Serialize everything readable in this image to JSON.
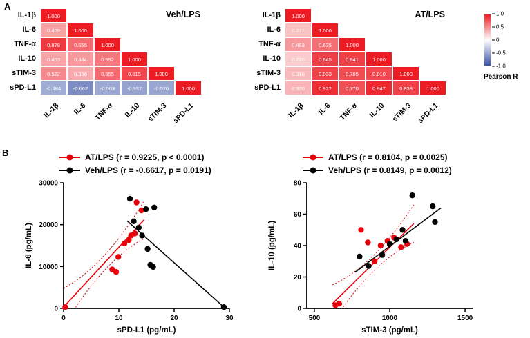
{
  "figure": {
    "panel_a_label": "A",
    "panel_b_label": "B"
  },
  "colorbar": {
    "label": "Pearson R",
    "ticks": [
      "1.0",
      "0.5",
      "0",
      "-0.5",
      "-1.0"
    ],
    "top_color": "#ec1c24",
    "mid_color": "#ffffff",
    "bottom_color": "#3a53a4"
  },
  "chart_data": [
    {
      "id": "heatmap_veh_lps",
      "type": "heatmap",
      "title": "Veh/LPS",
      "labels": [
        "IL-1β",
        "IL-6",
        "TNF-α",
        "IL-10",
        "sTIM-3",
        "sPD-L1"
      ],
      "matrix": [
        [
          1.0
        ],
        [
          0.409,
          1.0
        ],
        [
          0.878,
          0.655,
          1.0
        ],
        [
          0.403,
          0.444,
          0.592,
          1.0
        ],
        [
          0.522,
          0.366,
          0.655,
          0.815,
          1.0
        ],
        [
          -0.484,
          -0.662,
          -0.503,
          -0.537,
          -0.52,
          1.0
        ]
      ],
      "vmin": -1.0,
      "vmax": 1.0
    },
    {
      "id": "heatmap_at_lps",
      "type": "heatmap",
      "title": "AT/LPS",
      "labels": [
        "IL-1β",
        "IL-6",
        "TNF-α",
        "IL-10",
        "sTIM-3",
        "sPD-L1"
      ],
      "matrix": [
        [
          1.0
        ],
        [
          0.277,
          1.0
        ],
        [
          0.453,
          0.635,
          1.0
        ],
        [
          0.226,
          0.845,
          0.841,
          1.0
        ],
        [
          0.31,
          0.833,
          0.785,
          0.81,
          1.0
        ],
        [
          0.33,
          0.922,
          0.77,
          0.947,
          0.839,
          1.0
        ]
      ],
      "vmin": -1.0,
      "vmax": 1.0
    },
    {
      "id": "scatter_il6_vs_spdl1",
      "type": "scatter",
      "xlabel": "sPD-L1 (pg/mL)",
      "ylabel": "IL-6 (pg/mL)",
      "xlim": [
        0,
        30
      ],
      "ylim": [
        0,
        30000
      ],
      "xticks": [
        0,
        10,
        20,
        30
      ],
      "yticks": [
        0,
        10000,
        20000,
        30000
      ],
      "series": [
        {
          "name": "AT/LPS",
          "legend": "AT/LPS (r = 0.9225, p < 0.0001)",
          "color": "#e8000b",
          "points": [
            [
              0.3,
              300
            ],
            [
              8.8,
              9300
            ],
            [
              9.5,
              8700
            ],
            [
              9.9,
              12300
            ],
            [
              11.0,
              15500
            ],
            [
              11.8,
              16300
            ],
            [
              12.2,
              17400
            ],
            [
              12.9,
              17900
            ],
            [
              13.2,
              25300
            ],
            [
              14.1,
              23400
            ]
          ],
          "fit": [
            [
              0,
              300
            ],
            [
              14.6,
              21200
            ]
          ],
          "ci": {
            "mid": 1800,
            "end": 4500
          }
        },
        {
          "name": "Veh/LPS",
          "legend": "Veh/LPS (r = -0.6617, p = 0.0191)",
          "color": "#000000",
          "points": [
            [
              12.0,
              26200
            ],
            [
              12.7,
              20800
            ],
            [
              13.6,
              19300
            ],
            [
              14.2,
              17400
            ],
            [
              14.9,
              23700
            ],
            [
              16.4,
              24100
            ],
            [
              15.2,
              14200
            ],
            [
              15.7,
              10400
            ],
            [
              16.2,
              9900
            ],
            [
              29.0,
              300
            ]
          ],
          "fit": [
            [
              11.5,
              20900
            ],
            [
              29,
              300
            ]
          ],
          "ci": null
        }
      ]
    },
    {
      "id": "scatter_il10_vs_stim3",
      "type": "scatter",
      "xlabel": "sTIM-3 (pg/mL)",
      "ylabel": "IL-10 (pg/mL)",
      "xlim": [
        450,
        1550
      ],
      "ylim": [
        0,
        80
      ],
      "xticks": [
        500,
        1000,
        1500
      ],
      "yticks": [
        0,
        20,
        40,
        60,
        80
      ],
      "series": [
        {
          "name": "AT/LPS",
          "legend": "AT/LPS (r = 0.8104, p = 0.0025)",
          "color": "#e8000b",
          "points": [
            [
              640,
              2
            ],
            [
              665,
              3
            ],
            [
              810,
              50
            ],
            [
              855,
              42
            ],
            [
              900,
              30
            ],
            [
              940,
              40
            ],
            [
              985,
              43
            ],
            [
              1030,
              45
            ],
            [
              1075,
              39
            ],
            [
              1115,
              41
            ]
          ],
          "fit": [
            [
              620,
              3
            ],
            [
              1160,
              54
            ]
          ],
          "ci": {
            "mid": 5,
            "end": 12
          }
        },
        {
          "name": "Veh/LPS",
          "legend": "Veh/LPS (r = 0.8149, p = 0.0012)",
          "color": "#000000",
          "points": [
            [
              800,
              33
            ],
            [
              860,
              27
            ],
            [
              950,
              34
            ],
            [
              1000,
              41
            ],
            [
              1045,
              44
            ],
            [
              1085,
              50
            ],
            [
              1105,
              43
            ],
            [
              1150,
              72
            ],
            [
              1285,
              65
            ],
            [
              1300,
              55
            ]
          ],
          "fit": [
            [
              770,
              23
            ],
            [
              1340,
              64
            ]
          ],
          "ci": null
        }
      ]
    }
  ]
}
